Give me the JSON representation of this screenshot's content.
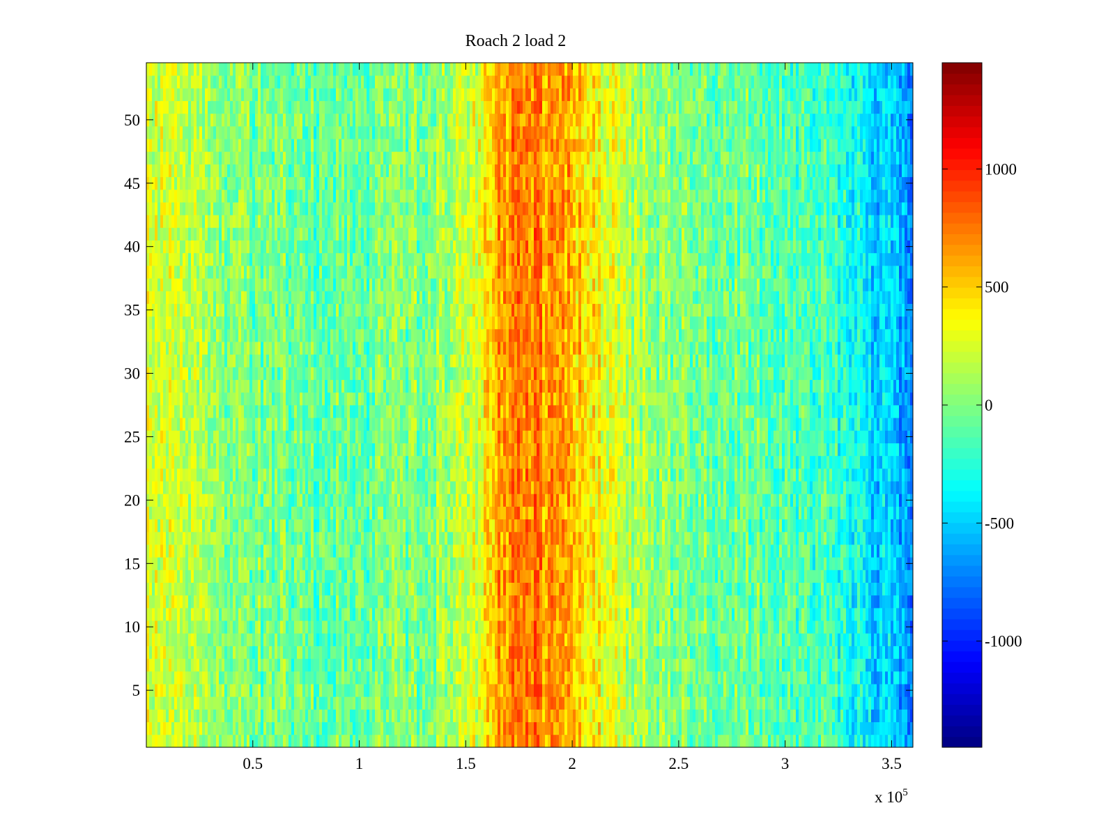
{
  "chart_data": {
    "type": "heatmap",
    "title": "Roach 2 load 2",
    "xlabel": "",
    "ylabel": "",
    "xlim": [
      0,
      360000
    ],
    "ylim": [
      0.5,
      54.5
    ],
    "x_exponent_label": {
      "base": "x 10",
      "power": "5"
    },
    "x_ticks": [
      {
        "value": 50000,
        "label": "0.5"
      },
      {
        "value": 100000,
        "label": "1"
      },
      {
        "value": 150000,
        "label": "1.5"
      },
      {
        "value": 200000,
        "label": "2"
      },
      {
        "value": 250000,
        "label": "2.5"
      },
      {
        "value": 300000,
        "label": "3"
      },
      {
        "value": 350000,
        "label": "3.5"
      }
    ],
    "y_ticks": [
      {
        "value": 5,
        "label": "5"
      },
      {
        "value": 10,
        "label": "10"
      },
      {
        "value": 15,
        "label": "15"
      },
      {
        "value": 20,
        "label": "20"
      },
      {
        "value": 25,
        "label": "25"
      },
      {
        "value": 30,
        "label": "30"
      },
      {
        "value": 35,
        "label": "35"
      },
      {
        "value": 40,
        "label": "40"
      },
      {
        "value": 45,
        "label": "45"
      },
      {
        "value": 50,
        "label": "50"
      }
    ],
    "colorbar": {
      "colormap": "jet",
      "clim": [
        -1450,
        1450
      ],
      "ticks": [
        {
          "value": 1000,
          "label": "1000"
        },
        {
          "value": 500,
          "label": "500"
        },
        {
          "value": 0,
          "label": "0"
        },
        {
          "value": -500,
          "label": "-500"
        },
        {
          "value": -1000,
          "label": "-1000"
        }
      ]
    },
    "rows": 54,
    "x_profile": {
      "note_units": "x in data units, value in colorbar units (mean level across rows)",
      "points": [
        {
          "x": 0,
          "v": 280
        },
        {
          "x": 15000,
          "v": 150
        },
        {
          "x": 40000,
          "v": 20
        },
        {
          "x": 80000,
          "v": -80
        },
        {
          "x": 120000,
          "v": -40
        },
        {
          "x": 150000,
          "v": 120
        },
        {
          "x": 160000,
          "v": 420
        },
        {
          "x": 165000,
          "v": 650
        },
        {
          "x": 180000,
          "v": 720
        },
        {
          "x": 195000,
          "v": 620
        },
        {
          "x": 210000,
          "v": 420
        },
        {
          "x": 225000,
          "v": 150
        },
        {
          "x": 250000,
          "v": 0
        },
        {
          "x": 280000,
          "v": -60
        },
        {
          "x": 310000,
          "v": -120
        },
        {
          "x": 330000,
          "v": -300
        },
        {
          "x": 345000,
          "v": -480
        },
        {
          "x": 360000,
          "v": -620
        }
      ]
    }
  }
}
